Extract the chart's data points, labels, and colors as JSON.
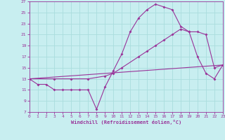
{
  "xlabel": "Windchill (Refroidissement éolien,°C)",
  "bg_color": "#c8eef0",
  "line_color": "#993399",
  "grid_color": "#aadddd",
  "xmin": 0,
  "xmax": 23,
  "ymin": 7,
  "ymax": 27,
  "yticks": [
    7,
    9,
    11,
    13,
    15,
    17,
    19,
    21,
    23,
    25,
    27
  ],
  "xticks": [
    0,
    1,
    2,
    3,
    4,
    5,
    6,
    7,
    8,
    9,
    10,
    11,
    12,
    13,
    14,
    15,
    16,
    17,
    18,
    19,
    20,
    21,
    22,
    23
  ],
  "line1_x": [
    0,
    1,
    2,
    3,
    4,
    5,
    6,
    7,
    8,
    9,
    10,
    11,
    12,
    13,
    14,
    15,
    16,
    17,
    18,
    19,
    20,
    21,
    22,
    23
  ],
  "line1_y": [
    13,
    12,
    12,
    11,
    11,
    11,
    11,
    11,
    7.5,
    11.5,
    14.5,
    17.5,
    21.5,
    24,
    25.5,
    26.5,
    26,
    25.5,
    22.5,
    21.5,
    17,
    14,
    13,
    15.5
  ],
  "line2_x": [
    0,
    3,
    5,
    7,
    9,
    10,
    11,
    13,
    14,
    15,
    16,
    17,
    18,
    19,
    20,
    21,
    22,
    23
  ],
  "line2_y": [
    13,
    13,
    13,
    13,
    13.5,
    14,
    15,
    17,
    18,
    19,
    20,
    21,
    22,
    21.5,
    21.5,
    21,
    15,
    15.5
  ],
  "line3_x": [
    0,
    23
  ],
  "line3_y": [
    13,
    15.5
  ]
}
